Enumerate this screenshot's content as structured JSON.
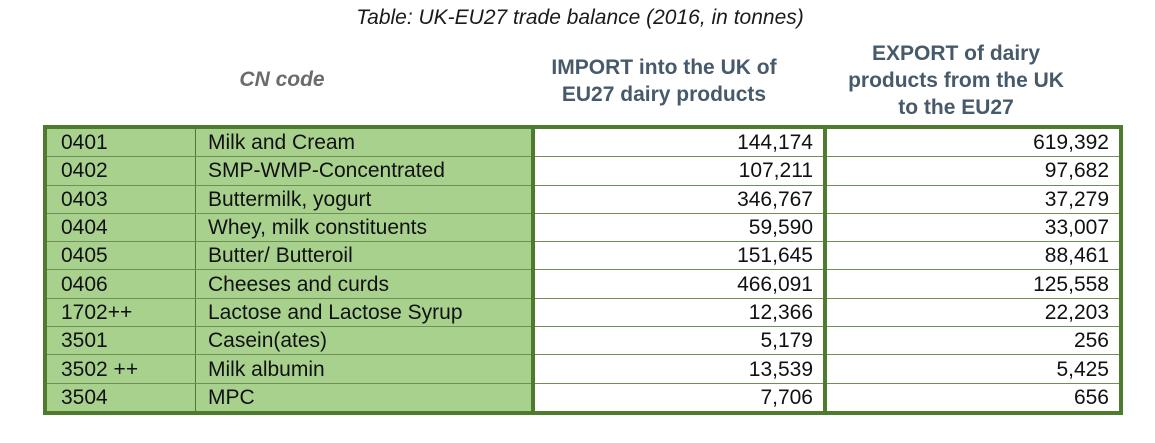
{
  "caption": "Table: UK-EU27 trade balance (2016, in tonnes)",
  "headers": {
    "cn_code": "CN code",
    "import_line1": "IMPORT into the UK of",
    "import_line2": "EU27 dairy products",
    "export_line1": "EXPORT of dairy",
    "export_line2": "products from the UK",
    "export_line3": "to the EU27"
  },
  "rows": [
    {
      "code": "0401",
      "product": "Milk and Cream",
      "import": "144,174",
      "export": "619,392"
    },
    {
      "code": "0402",
      "product": "SMP-WMP-Concentrated",
      "import": "107,211",
      "export": "97,682"
    },
    {
      "code": "0403",
      "product": "Buttermilk, yogurt",
      "import": "346,767",
      "export": "37,279"
    },
    {
      "code": "0404",
      "product": "Whey, milk constituents",
      "import": "59,590",
      "export": "33,007"
    },
    {
      "code": "0405",
      "product": "Butter/ Butteroil",
      "import": "151,645",
      "export": "88,461"
    },
    {
      "code": "0406",
      "product": "Cheeses and curds",
      "import": "466,091",
      "export": "125,558"
    },
    {
      "code": "1702++",
      "product": "Lactose and Lactose Syrup",
      "import": "12,366",
      "export": "22,203"
    },
    {
      "code": "3501",
      "product": "Casein(ates)",
      "import": "5,179",
      "export": "256"
    },
    {
      "code": "3502 ++",
      "product": "Milk albumin",
      "import": "13,539",
      "export": "5,425"
    },
    {
      "code": "3504",
      "product": "MPC",
      "import": "7,706",
      "export": "656"
    }
  ],
  "colors": {
    "label_fill": "#a9d18e",
    "border": "#4f7b2f",
    "header_text": "#475a6b"
  }
}
